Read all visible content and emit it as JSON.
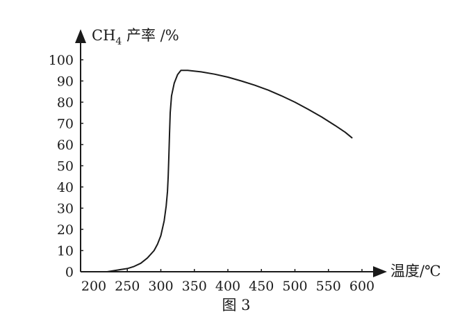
{
  "chart_data": {
    "type": "line",
    "title": "",
    "caption": "图 3",
    "ylabel": {
      "prefix": "CH",
      "subscript": "4",
      "suffix": " 产率 /%"
    },
    "xlabel": "温度/℃",
    "xlim": [
      200,
      620
    ],
    "ylim": [
      0,
      100
    ],
    "x_ticks": [
      200,
      250,
      300,
      350,
      400,
      450,
      500,
      550,
      600
    ],
    "y_ticks": [
      0,
      10,
      20,
      30,
      40,
      50,
      60,
      70,
      80,
      90,
      100
    ],
    "grid": false,
    "legend": "none",
    "series": [
      {
        "color": "#1a1a1a",
        "x": [
          220,
          240,
          250,
          260,
          270,
          280,
          290,
          295,
          300,
          305,
          308,
          310,
          311,
          312,
          313,
          314,
          316,
          320,
          325,
          330,
          340,
          360,
          380,
          400,
          420,
          440,
          460,
          480,
          500,
          520,
          540,
          560,
          575,
          585
        ],
        "y": [
          0,
          1,
          1.5,
          2.5,
          4,
          6.5,
          10,
          13,
          17,
          24,
          31,
          38,
          45,
          55,
          65,
          75,
          83,
          89,
          93,
          95,
          95,
          94.3,
          93.2,
          91.8,
          90,
          88,
          85.7,
          83,
          80,
          76.6,
          73,
          69,
          65.8,
          63.2
        ]
      }
    ]
  }
}
